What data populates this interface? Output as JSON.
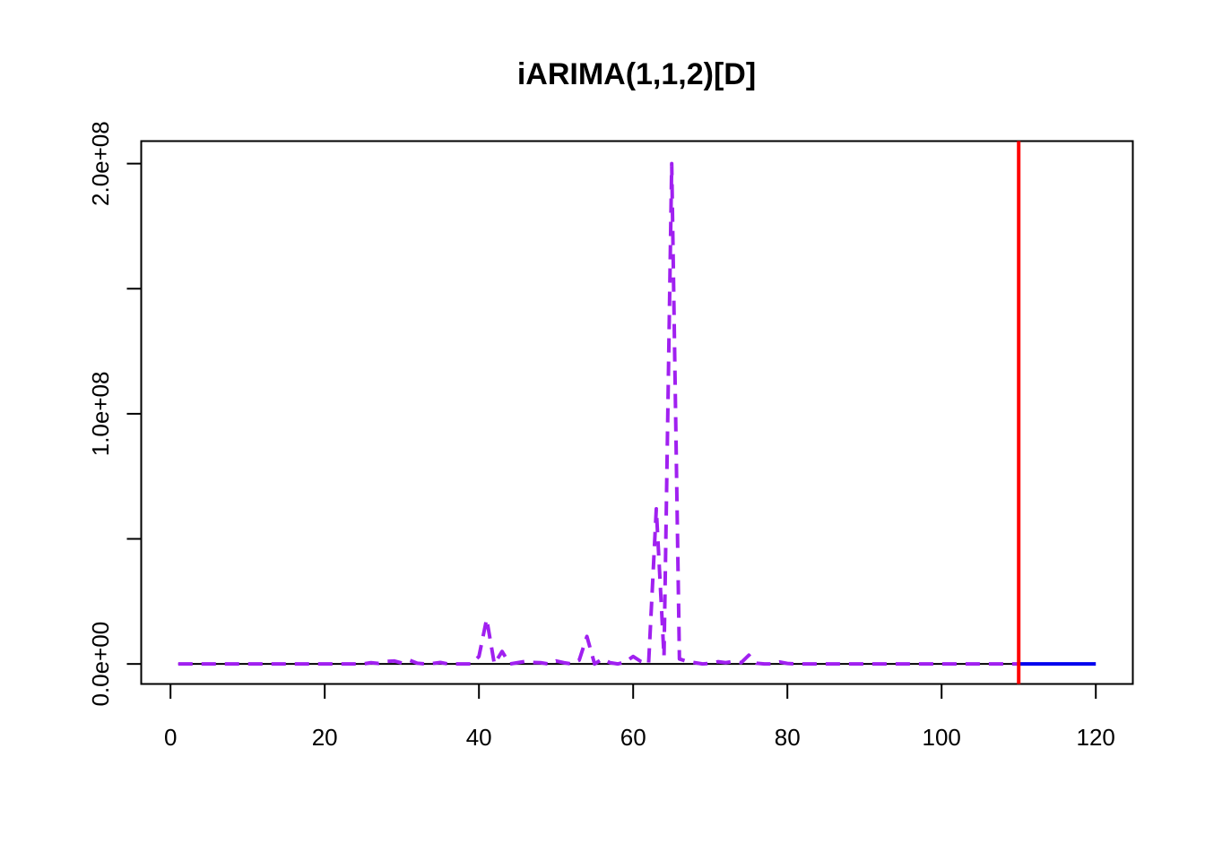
{
  "chart_data": {
    "type": "line",
    "title": "iARIMA(1,1,2)[D]",
    "xlabel": "",
    "ylabel": "",
    "xlim": [
      -3.8,
      124.8
    ],
    "ylim": [
      -8000000,
      209000000
    ],
    "x_ticks": [
      0,
      20,
      40,
      60,
      80,
      100,
      120
    ],
    "x_tick_labels": [
      "0",
      "20",
      "40",
      "60",
      "80",
      "100",
      "120"
    ],
    "y_ticks": [
      0,
      50000000,
      100000000,
      150000000,
      200000000
    ],
    "y_tick_labels": [
      "0.0e+00",
      "",
      "1.0e+08",
      "",
      "2.0e+08"
    ],
    "grid": false,
    "legend": "none",
    "series": [
      {
        "style": "solid",
        "color": "#000000",
        "x": [
          1,
          110
        ],
        "y": [
          0,
          0
        ]
      },
      {
        "style": "dashed",
        "color": "#A020F0",
        "x": [
          1,
          2,
          3,
          4,
          5,
          6,
          7,
          8,
          9,
          10,
          11,
          12,
          13,
          14,
          15,
          16,
          17,
          18,
          19,
          20,
          21,
          22,
          23,
          24,
          25,
          26,
          27,
          28,
          29,
          30,
          31,
          32,
          33,
          34,
          35,
          36,
          37,
          38,
          39,
          40,
          41,
          42,
          43,
          44,
          45,
          46,
          47,
          48,
          49,
          50,
          51,
          52,
          53,
          54,
          55,
          56,
          57,
          58,
          59,
          60,
          61,
          62,
          63,
          64,
          65,
          66,
          67,
          68,
          69,
          70,
          71,
          72,
          73,
          74,
          75,
          76,
          77,
          78,
          79,
          80,
          81,
          82,
          83,
          84,
          85,
          86,
          87,
          88,
          89,
          90,
          91,
          92,
          93,
          94,
          95,
          96,
          97,
          98,
          99,
          100,
          101,
          102,
          103,
          104,
          105,
          106,
          107,
          108,
          109,
          110
        ],
        "y": [
          0,
          0,
          0,
          0,
          0,
          0,
          0,
          0,
          0,
          0,
          0,
          0,
          0,
          0,
          0,
          0,
          0,
          0,
          0,
          0,
          0,
          0,
          0,
          0,
          0,
          500000,
          200000,
          1000000,
          1200000,
          400000,
          1500000,
          300000,
          0,
          200000,
          600000,
          0,
          0,
          0,
          0,
          3000000,
          18000000,
          0,
          5000000,
          0,
          500000,
          1000000,
          600000,
          500000,
          0,
          1200000,
          500000,
          0,
          1500000,
          11000000,
          0,
          2000000,
          500000,
          0,
          800000,
          3000000,
          1000000,
          0,
          62000000,
          3000000,
          200000000,
          2000000,
          1000000,
          500000,
          0,
          200000,
          900000,
          500000,
          1000000,
          500000,
          3500000,
          300000,
          0,
          0,
          800000,
          200000,
          0,
          0,
          0,
          0,
          0,
          0,
          0,
          0,
          0,
          0,
          0,
          0,
          0,
          0,
          0,
          0,
          0,
          0,
          0,
          0,
          0,
          0,
          0,
          0,
          0,
          0,
          0,
          0,
          0,
          0
        ]
      },
      {
        "style": "solid",
        "color": "#0000EE",
        "x": [
          110,
          111,
          112,
          113,
          114,
          115,
          116,
          117,
          118,
          119,
          120
        ],
        "y": [
          0,
          0,
          0,
          0,
          0,
          0,
          0,
          0,
          0,
          0,
          0
        ]
      }
    ],
    "vline": {
      "x": 110,
      "color": "#FF0000"
    }
  }
}
